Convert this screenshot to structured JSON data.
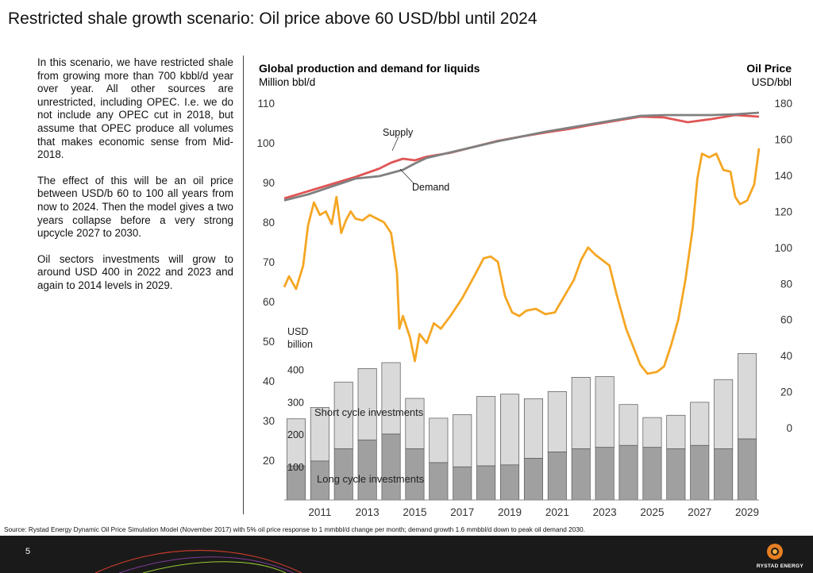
{
  "slide": {
    "title": "Restricted shale growth scenario: Oil price above 60 USD/bbl until 2024",
    "paragraphs": [
      "In this scenario, we have restricted shale from growing more than 700 kbbl/d year over year. All other sources are unrestricted, including OPEC.  I.e. we do not include any OPEC cut in 2018, but assume that OPEC produce all volumes that makes economic sense from Mid-2018.",
      "The effect of this will be an oil price between USD/b 60 to 100 all years from now to 2024.  Then the model gives a two years collapse before a very strong upcycle 2027 to 2030.",
      "Oil sectors investments will grow to around USD 400 in 2022 and 2023 and again to 2014 levels in 2029."
    ],
    "source": "Source: Rystad Energy Dynamic Oil Price Simulation Model (November 2017) with 5% oil price response to 1 mmbbl/d change per month; demand growth 1.6 mmbbl/d down to peak oil demand 2030.",
    "page_number": "5",
    "brand": "RYSTAD ENERGY"
  },
  "chart_data": {
    "type": "line",
    "title": "Global production and demand for liquids",
    "ylabel": "Million bbl/d",
    "y2_title": "Oil Price",
    "y2label": "USD/bbl",
    "ylim": [
      10,
      110
    ],
    "y_ticks": [
      20,
      30,
      40,
      50,
      60,
      70,
      80,
      90,
      100,
      110
    ],
    "y2lim": [
      -40,
      180
    ],
    "y2_ticks": [
      0,
      20,
      40,
      60,
      80,
      100,
      120,
      140,
      160,
      180
    ],
    "xlim": [
      2010,
      2030
    ],
    "x_ticks": [
      "2011",
      "2013",
      "2015",
      "2017",
      "2019",
      "2021",
      "2023",
      "2025",
      "2027",
      "2029"
    ],
    "grid": false,
    "colors": {
      "supply": "#e05555",
      "demand": "#808080",
      "oil_price": "#f5a623",
      "short_cycle": "#d9d9d9",
      "long_cycle": "#a0a0a0",
      "bar_edge": "#555555"
    },
    "series": [
      {
        "name": "Supply",
        "axis": "left",
        "x": [
          2010.0,
          2011.0,
          2012.0,
          2013.0,
          2014.0,
          2014.5,
          2015.0,
          2015.5,
          2016.0,
          2017.0,
          2018.0,
          2019.0,
          2020.0,
          2021.0,
          2022.0,
          2023.0,
          2024.0,
          2025.0,
          2026.0,
          2027.0,
          2028.0,
          2029.0,
          2030.0
        ],
        "values": [
          86.0,
          87.8,
          89.6,
          91.4,
          93.5,
          95.0,
          96.0,
          95.6,
          96.5,
          97.5,
          99.0,
          100.5,
          101.6,
          102.6,
          103.5,
          104.6,
          105.6,
          106.6,
          106.4,
          105.2,
          106.0,
          107.0,
          106.6
        ]
      },
      {
        "name": "Demand",
        "axis": "left",
        "x": [
          2010.0,
          2011.0,
          2012.0,
          2013.0,
          2014.0,
          2015.0,
          2015.5,
          2016.0,
          2017.0,
          2018.0,
          2019.0,
          2020.0,
          2021.0,
          2022.0,
          2023.0,
          2024.0,
          2025.0,
          2026.0,
          2027.0,
          2028.0,
          2029.0,
          2030.0
        ],
        "values": [
          85.5,
          87.0,
          89.0,
          91.0,
          91.6,
          93.2,
          94.8,
          96.2,
          97.6,
          99.0,
          100.4,
          101.6,
          102.8,
          103.8,
          104.8,
          105.8,
          106.8,
          107.0,
          107.0,
          107.0,
          107.2,
          107.6
        ]
      },
      {
        "name": "Oil Price",
        "axis": "right",
        "x": [
          2010.0,
          2010.2,
          2010.5,
          2010.8,
          2011.0,
          2011.25,
          2011.5,
          2011.75,
          2012.0,
          2012.2,
          2012.4,
          2012.6,
          2012.8,
          2013.0,
          2013.3,
          2013.6,
          2013.9,
          2014.2,
          2014.5,
          2014.75,
          2014.85,
          2015.0,
          2015.3,
          2015.5,
          2015.7,
          2016.0,
          2016.3,
          2016.6,
          2017.0,
          2017.5,
          2018.0,
          2018.4,
          2018.7,
          2019.0,
          2019.3,
          2019.6,
          2019.9,
          2020.2,
          2020.6,
          2021.0,
          2021.4,
          2021.8,
          2022.2,
          2022.5,
          2022.8,
          2023.1,
          2023.4,
          2023.7,
          2024.0,
          2024.4,
          2024.7,
          2025.0,
          2025.3,
          2025.7,
          2026.0,
          2026.3,
          2026.6,
          2026.9,
          2027.2,
          2027.4,
          2027.6,
          2027.9,
          2028.2,
          2028.5,
          2028.8,
          2029.0,
          2029.2,
          2029.5,
          2029.8,
          2030.0
        ],
        "values": [
          78,
          84,
          77,
          90,
          112,
          125,
          118,
          120,
          113,
          128,
          108,
          115,
          120,
          116,
          115,
          118,
          116,
          114,
          108,
          86,
          55,
          62,
          50,
          37,
          52,
          47,
          58,
          55,
          62,
          72,
          84,
          94,
          95,
          92,
          73,
          64,
          62,
          65,
          66,
          63,
          64,
          73,
          82,
          93,
          100,
          96,
          93,
          90,
          74,
          55,
          45,
          35,
          30,
          31,
          34,
          46,
          60,
          82,
          110,
          138,
          152,
          150,
          152,
          143,
          142,
          128,
          124,
          126,
          135,
          155
        ]
      }
    ],
    "bars": {
      "axis_label": "USD billion",
      "inner_ticks": [
        100,
        200,
        300,
        400
      ],
      "ylim": [
        0,
        550
      ],
      "categories": [
        "2010",
        "2011",
        "2012",
        "2013",
        "2014",
        "2015",
        "2016",
        "2017",
        "2018",
        "2019",
        "2020",
        "2021",
        "2022",
        "2023",
        "2024",
        "2025",
        "2026",
        "2027",
        "2028",
        "2029"
      ],
      "series": [
        {
          "name": "Long cycle investments",
          "values": [
            105,
            120,
            158,
            185,
            203,
            158,
            115,
            102,
            105,
            108,
            128,
            148,
            158,
            162,
            168,
            162,
            158,
            168,
            158,
            188
          ]
        },
        {
          "name": "Short cycle investments",
          "values": [
            145,
            165,
            205,
            220,
            220,
            155,
            137,
            161,
            214,
            218,
            184,
            186,
            220,
            218,
            126,
            92,
            103,
            133,
            213,
            263
          ]
        }
      ]
    }
  }
}
